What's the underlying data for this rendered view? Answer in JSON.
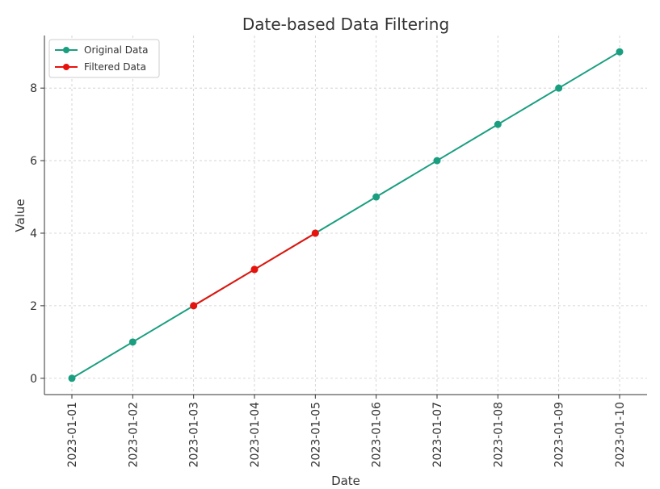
{
  "chart_data": {
    "type": "line",
    "title": "Date-based Data Filtering",
    "xlabel": "Date",
    "ylabel": "Value",
    "x": [
      "2023-01-01",
      "2023-01-02",
      "2023-01-03",
      "2023-01-04",
      "2023-01-05",
      "2023-01-06",
      "2023-01-07",
      "2023-01-08",
      "2023-01-09",
      "2023-01-10"
    ],
    "ylim": [
      -0.45,
      9.45
    ],
    "yticks": [
      0,
      2,
      4,
      6,
      8
    ],
    "grid": true,
    "legend_position": "top-left",
    "series": [
      {
        "name": "Original Data",
        "color": "#1a9e80",
        "x": [
          "2023-01-01",
          "2023-01-02",
          "2023-01-03",
          "2023-01-04",
          "2023-01-05",
          "2023-01-06",
          "2023-01-07",
          "2023-01-08",
          "2023-01-09",
          "2023-01-10"
        ],
        "values": [
          0,
          1,
          2,
          3,
          4,
          5,
          6,
          7,
          8,
          9
        ]
      },
      {
        "name": "Filtered Data",
        "color": "#e8120c",
        "x": [
          "2023-01-03",
          "2023-01-04",
          "2023-01-05"
        ],
        "values": [
          2,
          3,
          4
        ]
      }
    ]
  }
}
